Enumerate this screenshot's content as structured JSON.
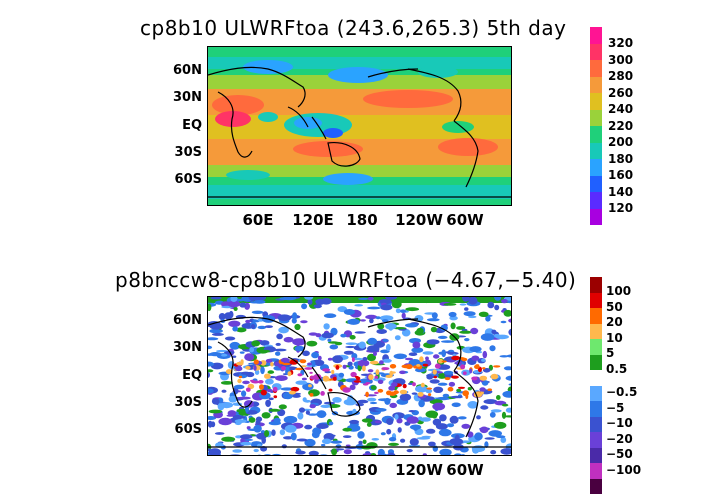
{
  "panels": [
    {
      "title": "cp8b10 ULWRFtoa (243.6,265.3) 5th day",
      "lat_labels": [
        "60N",
        "30N",
        "EQ",
        "30S",
        "60S"
      ],
      "lon_labels": [
        "60E",
        "120E",
        "180",
        "120W",
        "60W"
      ],
      "colorbar": {
        "labels": [
          "320",
          "300",
          "280",
          "260",
          "240",
          "220",
          "200",
          "180",
          "160",
          "140",
          "120"
        ],
        "colors": [
          "#ff1493",
          "#ff3366",
          "#ff6a3d",
          "#f59a3a",
          "#e0c020",
          "#9ad23a",
          "#1fd07a",
          "#18c9b8",
          "#2aa3ff",
          "#2060ff",
          "#5a2bff",
          "#a800e0"
        ]
      }
    },
    {
      "title": "p8bnccw8-cp8b10 ULWRFtoa (−4.67,−5.40)",
      "lat_labels": [
        "60N",
        "30N",
        "EQ",
        "30S",
        "60S"
      ],
      "lon_labels": [
        "60E",
        "120E",
        "180",
        "120W",
        "60W"
      ],
      "colorbar": {
        "labels": [
          "100",
          "50",
          "20",
          "10",
          "5",
          "0.5",
          "−0.5",
          "−5",
          "−10",
          "−20",
          "−50",
          "−100"
        ],
        "colors_pos": [
          "#9b0000",
          "#e00000",
          "#ff6a00",
          "#ffb84d",
          "#6ee86e",
          "#1e9e1e"
        ],
        "colors_neg": [
          "#5aa8ff",
          "#2e78e8",
          "#3a52d0",
          "#6a40d8",
          "#4a2aa8",
          "#c030c0",
          "#4a0040"
        ]
      }
    }
  ]
}
